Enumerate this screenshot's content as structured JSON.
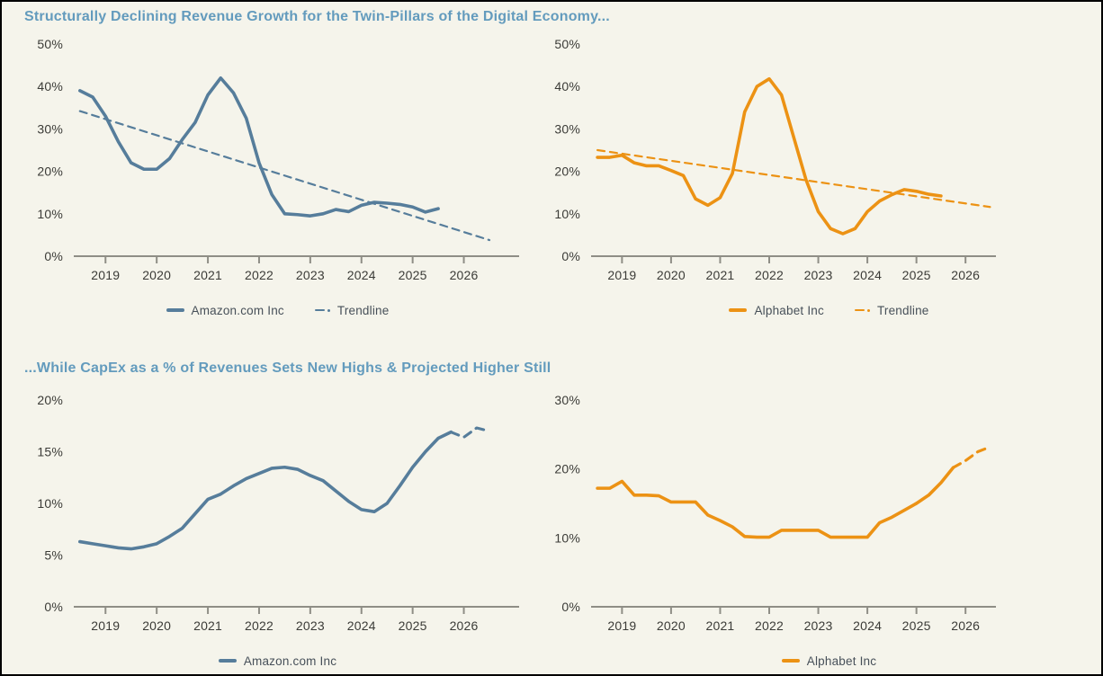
{
  "page_background": "#F5F4EB",
  "colors": {
    "amazon_blue": "#567D9B",
    "alphabet_orange": "#EC9214",
    "title_blue": "#639BBD",
    "axis_gray": "#8F8E86",
    "tick_label": "#3B3B37",
    "legend_text": "#475059"
  },
  "sections": [
    {
      "title": "Structurally Declining Revenue Growth for the Twin-Pillars of the Digital Economy..."
    },
    {
      "title": "...While CapEx as a % of Revenues Sets New Highs & Projected Higher Still"
    }
  ],
  "chart_data": [
    {
      "type": "line",
      "name": "amazon-revenue-growth",
      "x_start": 2018.5,
      "x_step": 0.25,
      "x_tick_labels": [
        "2019",
        "2020",
        "2021",
        "2022",
        "2023",
        "2024",
        "2025",
        "2026"
      ],
      "x_tick_values": [
        2019,
        2020,
        2021,
        2022,
        2023,
        2024,
        2025,
        2026
      ],
      "y_ticks": [
        {
          "label": "0%",
          "value": 0
        },
        {
          "label": "10%",
          "value": 10
        },
        {
          "label": "20%",
          "value": 20
        },
        {
          "label": "30%",
          "value": 30
        },
        {
          "label": "40%",
          "value": 40
        },
        {
          "label": "50%",
          "value": 50
        }
      ],
      "ylim": [
        0,
        50
      ],
      "grid": false,
      "legend_position": "bottom",
      "series": [
        {
          "name": "Amazon.com Inc",
          "color": "#567D9B",
          "style": "solid",
          "values": [
            39.0,
            37.5,
            33.0,
            27.0,
            22.0,
            20.5,
            20.5,
            23.0,
            27.5,
            31.5,
            38.0,
            42.0,
            38.5,
            32.5,
            22.0,
            14.5,
            10.0,
            9.8,
            9.5,
            10.0,
            11.0,
            10.5,
            12.0,
            12.7,
            12.5,
            12.2,
            11.6,
            10.4,
            11.2
          ]
        },
        {
          "name": "Trendline",
          "color": "#567D9B",
          "style": "dashed",
          "x": [
            2018.5,
            2026.5
          ],
          "values": [
            34.2,
            3.8
          ]
        }
      ]
    },
    {
      "type": "line",
      "name": "alphabet-revenue-growth",
      "x_start": 2018.5,
      "x_step": 0.25,
      "x_tick_labels": [
        "2019",
        "2020",
        "2021",
        "2022",
        "2023",
        "2024",
        "2025",
        "2026"
      ],
      "x_tick_values": [
        2019,
        2020,
        2021,
        2022,
        2023,
        2024,
        2025,
        2026
      ],
      "y_ticks": [
        {
          "label": "0%",
          "value": 0
        },
        {
          "label": "10%",
          "value": 10
        },
        {
          "label": "20%",
          "value": 20
        },
        {
          "label": "30%",
          "value": 30
        },
        {
          "label": "40%",
          "value": 40
        },
        {
          "label": "50%",
          "value": 50
        }
      ],
      "ylim": [
        0,
        50
      ],
      "grid": false,
      "legend_position": "bottom",
      "series": [
        {
          "name": "Alphabet Inc",
          "color": "#EC9214",
          "style": "solid",
          "values": [
            23.3,
            23.3,
            23.8,
            22.0,
            21.3,
            21.3,
            20.2,
            19.0,
            13.5,
            12.0,
            13.8,
            19.5,
            34.0,
            40.0,
            41.8,
            38.0,
            28.0,
            18.0,
            10.5,
            6.5,
            5.3,
            6.5,
            10.5,
            13.0,
            14.5,
            15.7,
            15.3,
            14.6,
            14.2
          ]
        },
        {
          "name": "Trendline",
          "color": "#EC9214",
          "style": "dashed",
          "x": [
            2018.5,
            2026.5
          ],
          "values": [
            25.0,
            11.6
          ]
        }
      ]
    },
    {
      "type": "line",
      "name": "amazon-capex-pct-revenue",
      "x_start": 2018.5,
      "x_step": 0.25,
      "x_tick_labels": [
        "2019",
        "2020",
        "2021",
        "2022",
        "2023",
        "2024",
        "2025",
        "2026"
      ],
      "x_tick_values": [
        2019,
        2020,
        2021,
        2022,
        2023,
        2024,
        2025,
        2026
      ],
      "y_ticks": [
        {
          "label": "0%",
          "value": 0
        },
        {
          "label": "5%",
          "value": 5
        },
        {
          "label": "10%",
          "value": 10
        },
        {
          "label": "15%",
          "value": 15
        },
        {
          "label": "20%",
          "value": 20
        }
      ],
      "ylim": [
        0,
        20
      ],
      "grid": false,
      "legend_position": "bottom",
      "series": [
        {
          "name": "Amazon.com Inc",
          "color": "#567D9B",
          "style": "solid_then_dashed",
          "dash_from_index": 29,
          "values": [
            6.3,
            6.1,
            5.9,
            5.7,
            5.6,
            5.8,
            6.1,
            6.8,
            7.6,
            9.0,
            10.4,
            10.9,
            11.7,
            12.4,
            12.9,
            13.4,
            13.5,
            13.3,
            12.7,
            12.2,
            11.2,
            10.2,
            9.4,
            9.2,
            10.0,
            11.7,
            13.5,
            15.0,
            16.3,
            16.9,
            16.4,
            17.3,
            17.0
          ]
        }
      ]
    },
    {
      "type": "line",
      "name": "alphabet-capex-pct-revenue",
      "x_start": 2018.5,
      "x_step": 0.25,
      "x_tick_labels": [
        "2019",
        "2020",
        "2021",
        "2022",
        "2023",
        "2024",
        "2025",
        "2026"
      ],
      "x_tick_values": [
        2019,
        2020,
        2021,
        2022,
        2023,
        2024,
        2025,
        2026
      ],
      "y_ticks": [
        {
          "label": "0%",
          "value": 0
        },
        {
          "label": "10%",
          "value": 10
        },
        {
          "label": "20%",
          "value": 20
        },
        {
          "label": "30%",
          "value": 30
        }
      ],
      "ylim": [
        0,
        30
      ],
      "grid": false,
      "legend_position": "bottom",
      "series": [
        {
          "name": "Alphabet Inc",
          "color": "#EC9214",
          "style": "solid_then_dashed",
          "dash_from_index": 29,
          "values": [
            17.2,
            17.2,
            18.2,
            16.2,
            16.2,
            16.1,
            15.2,
            15.2,
            15.2,
            13.3,
            12.5,
            11.6,
            10.2,
            10.1,
            10.1,
            11.1,
            11.1,
            11.1,
            11.1,
            10.1,
            10.1,
            10.1,
            10.1,
            12.2,
            13.0,
            14.0,
            15.0,
            16.2,
            18.0,
            20.2,
            21.2,
            22.5,
            23.2
          ]
        }
      ]
    }
  ]
}
